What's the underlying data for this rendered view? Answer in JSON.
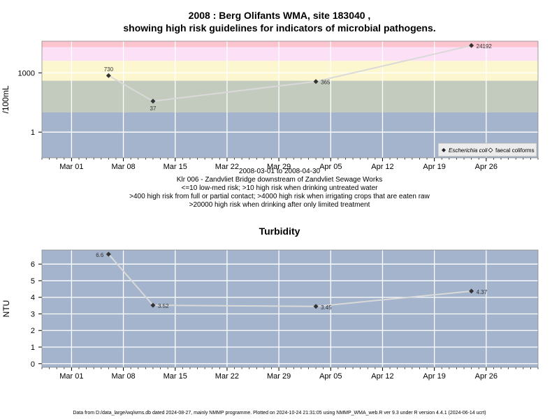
{
  "title": {
    "line1": "2008 : Berg Olifants WMA, site 183040 ,",
    "line2": "showing high risk guidelines for indicators of microbial pathogens."
  },
  "caption": [
    "2008-03-01 to 2008-04-30",
    "Klr 006 - Zandvliet Bridge downstream of Zandvliet Sewage Works",
    "<=10 low-med risk; >10 high risk when drinking untreated water",
    ">400 high risk from full or partial contact; >4000 high risk when irrigating crops that are eaten raw",
    ">20000 high risk when drinking after only limited treatment"
  ],
  "footer": "Data from D:/data_large/wq/wms.db dated 2024-08-27, mainly NMMP programme. Plotted on 2024-10-24 21:31:05 using NMMP_WMA_web.R ver 9.3 under R version 4.4.1 (2024-06-14 ucrt)",
  "colors": {
    "band_red": "#fcc4cf",
    "band_pink": "#fce0f6",
    "band_yellow": "#fdf7cf",
    "band_green": "#c3cbbe",
    "band_blue": "#a3b4cc",
    "grid": "#ffffff",
    "line": "#d9d9d9",
    "marker": "#333333"
  },
  "chart_data": [
    {
      "type": "line",
      "title": "",
      "xlabel": "",
      "ylabel": "/100mL",
      "yscale": "log",
      "x_tick_labels": [
        "Mar 01",
        "Mar 08",
        "Mar 15",
        "Mar 22",
        "Mar 29",
        "Apr 05",
        "Apr 12",
        "Apr 19",
        "Apr 26"
      ],
      "x_tick_dates": [
        "2008-03-01",
        "2008-03-08",
        "2008-03-15",
        "2008-03-22",
        "2008-03-29",
        "2008-04-05",
        "2008-04-12",
        "2008-04-19",
        "2008-04-26"
      ],
      "xlim": [
        "2008-02-26",
        "2008-05-03"
      ],
      "y_tick_labels": [
        "1",
        "1000"
      ],
      "y_tick_values": [
        1,
        1000
      ],
      "ylim": [
        0.05,
        40000
      ],
      "risk_bands": [
        {
          "from": 20000,
          "to": 40000,
          "color": "band_red"
        },
        {
          "from": 4000,
          "to": 20000,
          "color": "band_pink"
        },
        {
          "from": 400,
          "to": 4000,
          "color": "band_yellow"
        },
        {
          "from": 10,
          "to": 400,
          "color": "band_green"
        },
        {
          "from": 0.05,
          "to": 10,
          "color": "band_blue"
        }
      ],
      "series": [
        {
          "name": "Escherichia coli",
          "marker": "diamond-filled",
          "points": [
            {
              "x": "2008-03-06",
              "y": 730,
              "label": "730"
            },
            {
              "x": "2008-03-12",
              "y": 37,
              "label": "37"
            },
            {
              "x": "2008-04-03",
              "y": 365,
              "label": "365"
            },
            {
              "x": "2008-04-24",
              "y": 24192,
              "label": "24192"
            }
          ]
        }
      ],
      "legend": {
        "placement": "bottom-right",
        "entries": [
          {
            "label": "Escherichia coli",
            "marker": "diamond-filled"
          },
          {
            "label": "faecal coliforms",
            "marker": "diamond-open"
          }
        ]
      },
      "grid": true
    },
    {
      "type": "line",
      "title": "Turbidity",
      "xlabel": "",
      "ylabel": "NTU",
      "x_tick_labels": [
        "Mar 01",
        "Mar 08",
        "Mar 15",
        "Mar 22",
        "Mar 29",
        "Apr 05",
        "Apr 12",
        "Apr 19",
        "Apr 26"
      ],
      "x_tick_dates": [
        "2008-03-01",
        "2008-03-08",
        "2008-03-15",
        "2008-03-22",
        "2008-03-29",
        "2008-04-05",
        "2008-04-12",
        "2008-04-19",
        "2008-04-26"
      ],
      "xlim": [
        "2008-02-26",
        "2008-05-03"
      ],
      "y_tick_labels": [
        "0",
        "1",
        "2",
        "3",
        "4",
        "5",
        "6"
      ],
      "y_tick_values": [
        0,
        1,
        2,
        3,
        4,
        5,
        6
      ],
      "ylim": [
        -0.22,
        6.85
      ],
      "series": [
        {
          "name": "",
          "marker": "diamond-filled",
          "points": [
            {
              "x": "2008-03-06",
              "y": 6.6,
              "label": "6.6"
            },
            {
              "x": "2008-03-12",
              "y": 3.52,
              "label": "3.52"
            },
            {
              "x": "2008-04-03",
              "y": 3.45,
              "label": "3.45"
            },
            {
              "x": "2008-04-24",
              "y": 4.37,
              "label": "4.37"
            }
          ]
        }
      ],
      "grid": true
    }
  ]
}
